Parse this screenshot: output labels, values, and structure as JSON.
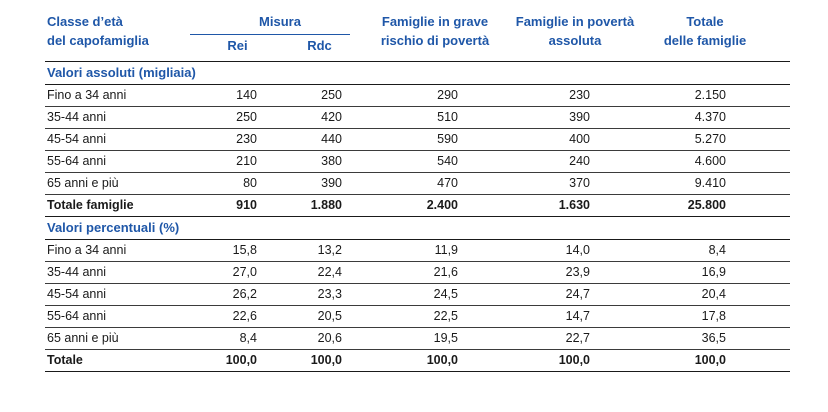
{
  "table": {
    "header": {
      "age_class_line1": "Classe d’età",
      "age_class_line2": "del capofamiglia",
      "misura": "Misura",
      "rei": "Rei",
      "rdc": "Rdc",
      "grave_line1": "Famiglie in grave",
      "grave_line2": "rischio di povertà",
      "assoluta_line1": "Famiglie in povertà",
      "assoluta_line2": "assoluta",
      "totale_line1": "Totale",
      "totale_line2": "delle famiglie"
    },
    "sections": [
      {
        "title": "Valori assoluti (migliaia)",
        "rows": [
          {
            "label": "Fino a 34 anni",
            "values": [
              "140",
              "250",
              "290",
              "230",
              "2.150"
            ],
            "total": false
          },
          {
            "label": "35-44 anni",
            "values": [
              "250",
              "420",
              "510",
              "390",
              "4.370"
            ],
            "total": false
          },
          {
            "label": "45-54 anni",
            "values": [
              "230",
              "440",
              "590",
              "400",
              "5.270"
            ],
            "total": false
          },
          {
            "label": "55-64 anni",
            "values": [
              "210",
              "380",
              "540",
              "240",
              "4.600"
            ],
            "total": false
          },
          {
            "label": "65 anni e più",
            "values": [
              "80",
              "390",
              "470",
              "370",
              "9.410"
            ],
            "total": false
          },
          {
            "label": "Totale famiglie",
            "values": [
              "910",
              "1.880",
              "2.400",
              "1.630",
              "25.800"
            ],
            "total": true
          }
        ]
      },
      {
        "title": "Valori percentuali (%)",
        "rows": [
          {
            "label": "Fino a 34 anni",
            "values": [
              "15,8",
              "13,2",
              "11,9",
              "14,0",
              "8,4"
            ],
            "total": false
          },
          {
            "label": "35-44 anni",
            "values": [
              "27,0",
              "22,4",
              "21,6",
              "23,9",
              "16,9"
            ],
            "total": false
          },
          {
            "label": "45-54 anni",
            "values": [
              "26,2",
              "23,3",
              "24,5",
              "24,7",
              "20,4"
            ],
            "total": false
          },
          {
            "label": "55-64 anni",
            "values": [
              "22,6",
              "20,5",
              "22,5",
              "14,7",
              "17,8"
            ],
            "total": false
          },
          {
            "label": "65 anni e più",
            "values": [
              "8,4",
              "20,6",
              "19,5",
              "22,7",
              "36,5"
            ],
            "total": false
          },
          {
            "label": "Totale",
            "values": [
              "100,0",
              "100,0",
              "100,0",
              "100,0",
              "100,0"
            ],
            "total": true
          }
        ]
      }
    ]
  },
  "colors": {
    "header_blue": "#1F57A8",
    "text": "#1A1A1A",
    "rule": "#1A1A1A"
  }
}
